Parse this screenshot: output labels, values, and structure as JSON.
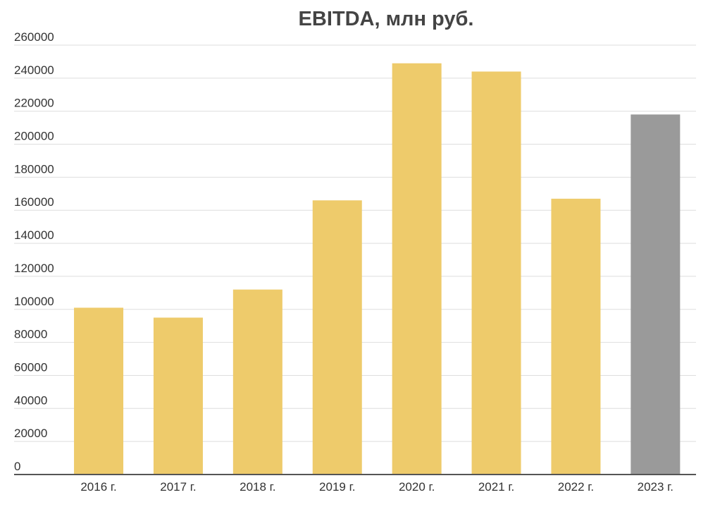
{
  "chart_data": {
    "type": "bar",
    "title": "EBITDA, млн руб.",
    "categories": [
      "2016 г.",
      "2017 г.",
      "2018 г.",
      "2019 г.",
      "2020 г.",
      "2021 г.",
      "2022 г.",
      "2023 г."
    ],
    "values": [
      101000,
      95000,
      112000,
      166000,
      249000,
      244000,
      167000,
      218000
    ],
    "colors": [
      "#eecb6b",
      "#eecb6b",
      "#eecb6b",
      "#eecb6b",
      "#eecb6b",
      "#eecb6b",
      "#eecb6b",
      "#9a9a9a"
    ],
    "ylim": [
      0,
      260000
    ],
    "yticks": [
      0,
      20000,
      40000,
      60000,
      80000,
      100000,
      120000,
      140000,
      160000,
      180000,
      200000,
      220000,
      240000,
      260000
    ],
    "grid": true
  }
}
